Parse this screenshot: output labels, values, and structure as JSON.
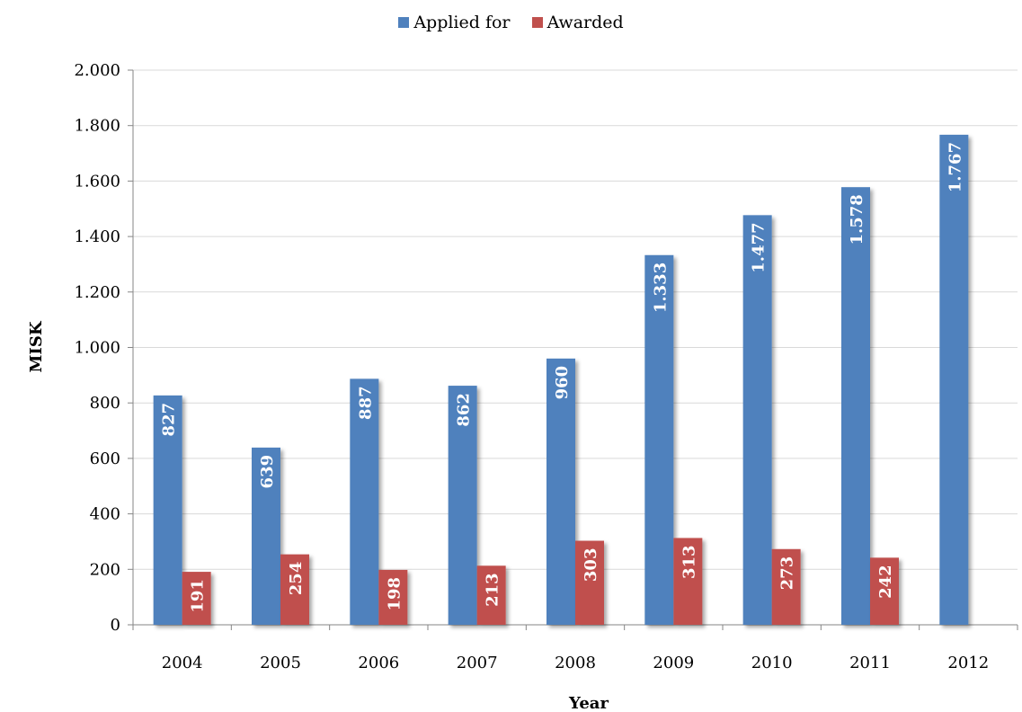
{
  "chart_data": {
    "type": "bar",
    "title": "",
    "xlabel": "Year",
    "ylabel": "MISK",
    "categories": [
      "2004",
      "2005",
      "2006",
      "2007",
      "2008",
      "2009",
      "2010",
      "2011",
      "2012"
    ],
    "series": [
      {
        "name": "Applied for",
        "color": "#4F81BD",
        "values": [
          827,
          639,
          887,
          862,
          960,
          1333,
          1477,
          1578,
          1767
        ],
        "labels": [
          "827",
          "639",
          "887",
          "862",
          "960",
          "1.333",
          "1.477",
          "1.578",
          "1.767"
        ]
      },
      {
        "name": "Awarded",
        "color": "#C0504D",
        "values": [
          191,
          254,
          198,
          213,
          303,
          313,
          273,
          242,
          null
        ],
        "labels": [
          "191",
          "254",
          "198",
          "213",
          "303",
          "313",
          "273",
          "242",
          ""
        ]
      }
    ],
    "ylim": [
      0,
      2000
    ],
    "yticks": [
      0,
      200,
      400,
      600,
      800,
      1000,
      1200,
      1400,
      1600,
      1800,
      2000
    ],
    "ytick_labels": [
      "0",
      "200",
      "400",
      "600",
      "800",
      "1.000",
      "1.200",
      "1.400",
      "1.600",
      "1.800",
      "2.000"
    ],
    "grid": true,
    "legend_position": "top-center"
  }
}
